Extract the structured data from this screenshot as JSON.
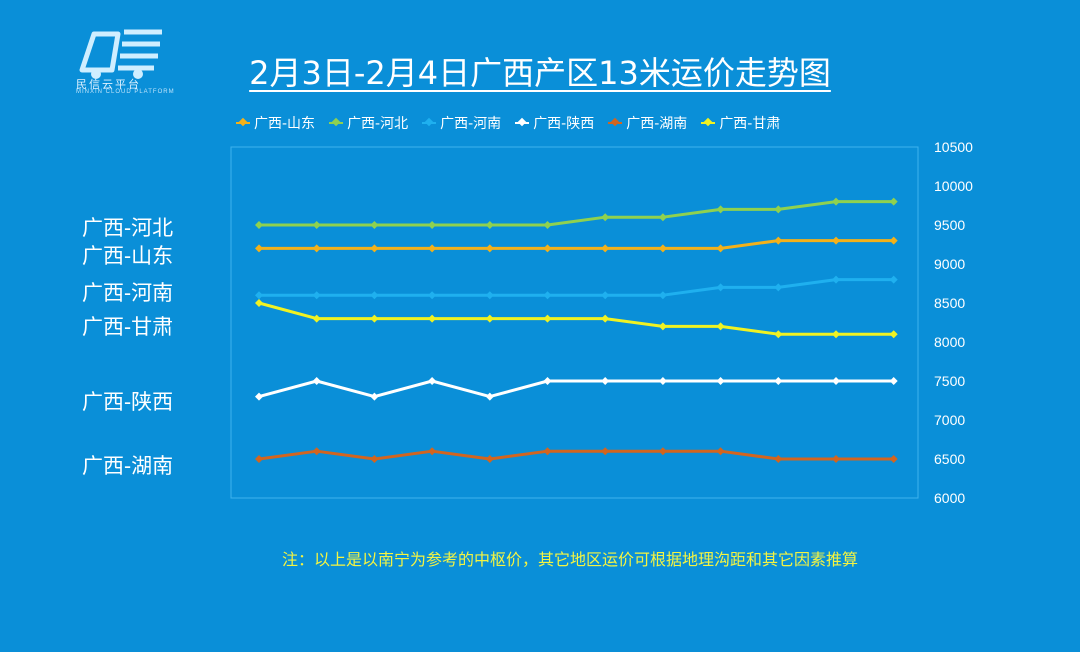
{
  "logo": {
    "caption": "民信云平台",
    "sub": "MINXIN CLOUD PLATFORM"
  },
  "title": "2月3日-2月4日广西产区13米运价走势图",
  "note": "注：以上是以南宁为参考的中枢价，其它地区运价可根据地理沟距和其它因素推算",
  "side_labels": [
    "广西-河北",
    "广西-山东",
    "广西-河南",
    "广西-甘肃",
    "广西-陕西",
    "广西-湖南"
  ],
  "chart_data": {
    "type": "line",
    "title": "2月3日-2月4日广西产区13米运价走势图",
    "xlabel": "",
    "ylabel": "",
    "ylim": [
      6000,
      10500
    ],
    "yticks": [
      6000,
      6500,
      7000,
      7500,
      8000,
      8500,
      9000,
      9500,
      10000,
      10500
    ],
    "yaxis_position": "right",
    "grid": false,
    "legend_position": "top",
    "x": [
      1,
      2,
      3,
      4,
      5,
      6,
      7,
      8,
      9,
      10,
      11,
      12
    ],
    "series": [
      {
        "name": "广西-山东",
        "color": "#f3b11a",
        "values": [
          9200,
          9200,
          9200,
          9200,
          9200,
          9200,
          9200,
          9200,
          9200,
          9300,
          9300,
          9300
        ]
      },
      {
        "name": "广西-河北",
        "color": "#8fd14f",
        "values": [
          9500,
          9500,
          9500,
          9500,
          9500,
          9500,
          9600,
          9600,
          9700,
          9700,
          9800,
          9800
        ]
      },
      {
        "name": "广西-河南",
        "color": "#1fb0ef",
        "values": [
          8600,
          8600,
          8600,
          8600,
          8600,
          8600,
          8600,
          8600,
          8700,
          8700,
          8800,
          8800
        ]
      },
      {
        "name": "广西-陕西",
        "color": "#ffffff",
        "values": [
          7300,
          7500,
          7300,
          7500,
          7300,
          7500,
          7500,
          7500,
          7500,
          7500,
          7500,
          7500
        ]
      },
      {
        "name": "广西-湖南",
        "color": "#d2651f",
        "values": [
          6500,
          6600,
          6500,
          6600,
          6500,
          6600,
          6600,
          6600,
          6600,
          6500,
          6500,
          6500
        ]
      },
      {
        "name": "广西-甘肃",
        "color": "#f0f222",
        "values": [
          8500,
          8300,
          8300,
          8300,
          8300,
          8300,
          8300,
          8200,
          8200,
          8100,
          8100,
          8100
        ]
      }
    ]
  }
}
